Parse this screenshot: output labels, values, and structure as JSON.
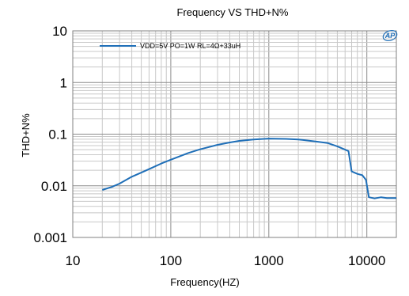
{
  "chart_data": {
    "type": "line",
    "title": "Frequency VS THD+N%",
    "xlabel": "Frequency(HZ)",
    "ylabel": "THD+N%",
    "x_scale": "log",
    "y_scale": "log",
    "xlim": [
      10,
      20000
    ],
    "ylim": [
      0.001,
      10
    ],
    "x_ticks": [
      {
        "value": 10,
        "label": "10"
      },
      {
        "value": 100,
        "label": "100"
      },
      {
        "value": 1000,
        "label": "1000"
      },
      {
        "value": 10000,
        "label": "10000"
      }
    ],
    "y_ticks": [
      {
        "value": 10,
        "label": "10"
      },
      {
        "value": 1,
        "label": "1"
      },
      {
        "value": 0.1,
        "label": "0.1"
      },
      {
        "value": 0.01,
        "label": "0.01"
      },
      {
        "value": 0.001,
        "label": "0.001"
      }
    ],
    "grid": true,
    "legend": "top-left",
    "series": [
      {
        "name": "VDD=5V  PO=1W RL=4Ω+33uH",
        "color": "#1f6fb8",
        "x": [
          20,
          25,
          30,
          40,
          50,
          60,
          80,
          100,
          150,
          200,
          300,
          400,
          500,
          700,
          1000,
          1500,
          2000,
          3000,
          4000,
          5000,
          6000,
          6500,
          7000,
          8000,
          9000,
          9800,
          10500,
          12000,
          14000,
          16000,
          20000
        ],
        "y": [
          0.0083,
          0.0095,
          0.011,
          0.015,
          0.018,
          0.021,
          0.027,
          0.032,
          0.043,
          0.051,
          0.062,
          0.069,
          0.074,
          0.079,
          0.082,
          0.081,
          0.079,
          0.072,
          0.067,
          0.058,
          0.05,
          0.047,
          0.019,
          0.017,
          0.016,
          0.013,
          0.006,
          0.0057,
          0.006,
          0.0058,
          0.0058
        ]
      }
    ]
  },
  "logo": {
    "text": "AP",
    "color": "#1f6fb8"
  }
}
